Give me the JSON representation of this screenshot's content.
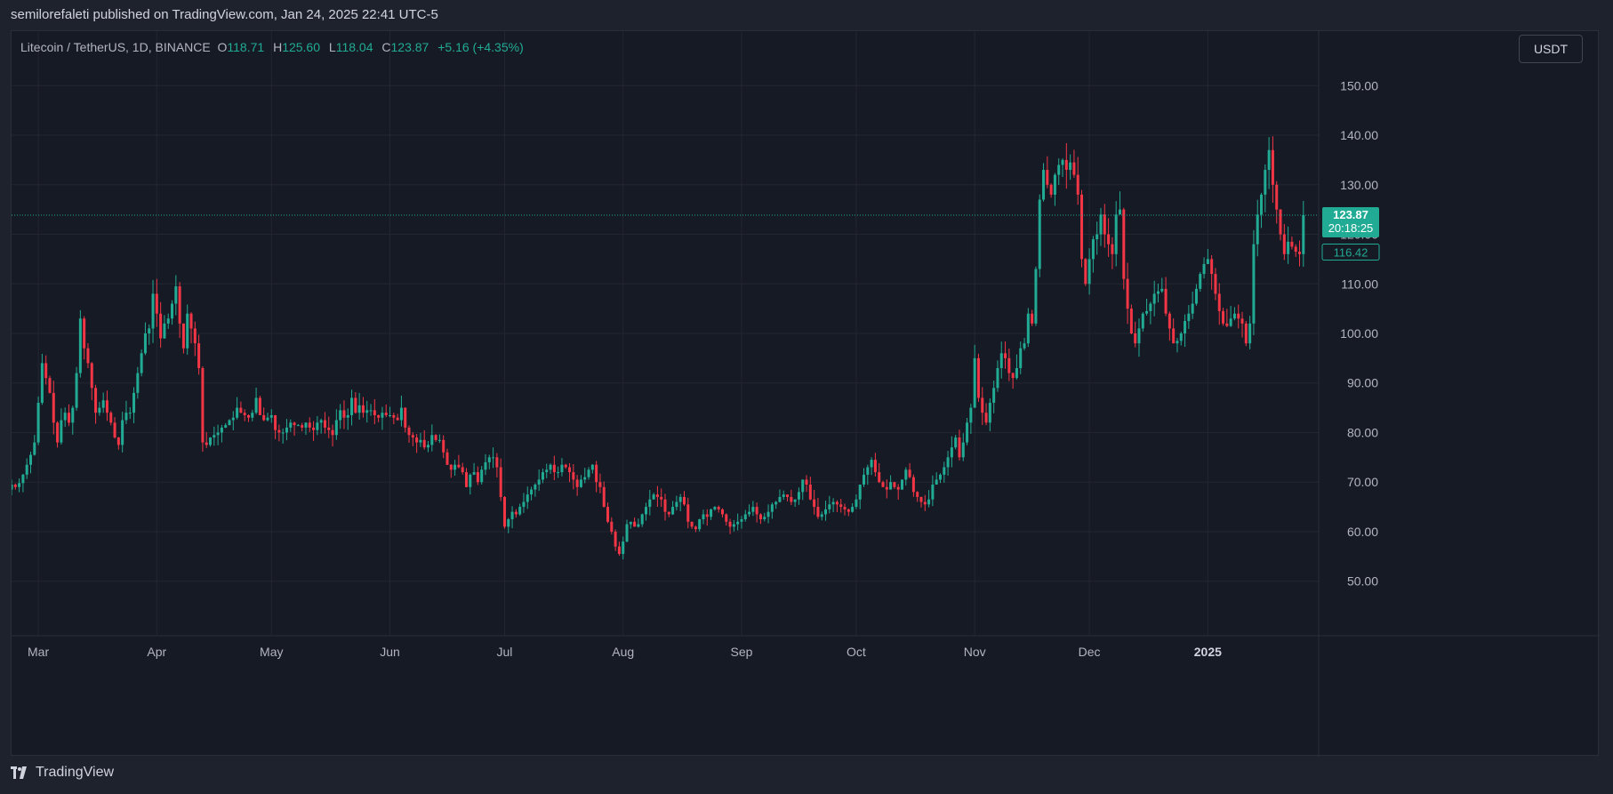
{
  "header": {
    "publisher_line": "semilorefaleti published on TradingView.com, Jan 24, 2025 22:41 UTC-5"
  },
  "legend": {
    "symbol": "Litecoin / TetherUS, 1D, BINANCE",
    "open_label": "O",
    "open": "118.71",
    "high_label": "H",
    "high": "125.60",
    "low_label": "L",
    "low": "118.04",
    "close_label": "C",
    "close": "123.87",
    "change": "+5.16 (+4.35%)"
  },
  "currency_button": "USDT",
  "price_tags": {
    "last_price": "123.87",
    "countdown": "20:18:25",
    "secondary": "116.42"
  },
  "footer": {
    "brand": "TradingView",
    "logo_icon": "tradingview-logo-icon"
  },
  "colors": {
    "up": "#22ab94",
    "down": "#f23645",
    "background": "#161a25",
    "grid": "#232631",
    "text": "#b2b5be"
  },
  "chart_data": {
    "type": "candlestick",
    "y_axis": {
      "ticks": [
        "50.00",
        "60.00",
        "70.00",
        "80.00",
        "90.00",
        "100.00",
        "110.00",
        "120.00",
        "130.00",
        "140.00",
        "150.00"
      ],
      "range": [
        39,
        161
      ]
    },
    "x_axis": {
      "labels": [
        "Mar",
        "Apr",
        "May",
        "Jun",
        "Jul",
        "Aug",
        "Sep",
        "Oct",
        "Nov",
        "Dec",
        "2025"
      ],
      "range": [
        "2024-02-23",
        "2025-01-30"
      ]
    },
    "grid": true,
    "series": [
      {
        "type": "ohlc",
        "date_start": "2024-02-23",
        "interval": "1D",
        "close": [
          69.5,
          69.0,
          69.8,
          71.5,
          73.5,
          75.5,
          78.0,
          86.0,
          94.0,
          91.0,
          88.0,
          82.0,
          78.0,
          82.5,
          84.0,
          82.0,
          85.0,
          92.0,
          103.0,
          97.0,
          94.0,
          89.0,
          84.0,
          85.0,
          86.5,
          84.0,
          82.0,
          79.0,
          77.5,
          82.5,
          84.0,
          84.0,
          88.0,
          92.0,
          96.0,
          100.0,
          101.0,
          108.0,
          104.0,
          99.0,
          102.0,
          103.0,
          106.0,
          109.5,
          102.0,
          97.0,
          104.0,
          101.0,
          98.0,
          93.0,
          78.0,
          77.5,
          79.0,
          79.5,
          80.0,
          81.0,
          81.5,
          82.5,
          83.0,
          85.0,
          84.0,
          83.5,
          83.0,
          84.0,
          87.0,
          83.5,
          82.5,
          83.0,
          83.5,
          80.5,
          80.0,
          80.0,
          81.0,
          82.0,
          81.5,
          81.5,
          81.0,
          82.0,
          81.0,
          80.5,
          82.0,
          82.5,
          81.0,
          80.5,
          79.5,
          82.5,
          84.5,
          83.0,
          83.5,
          87.0,
          84.0,
          85.5,
          84.0,
          84.5,
          84.5,
          83.5,
          83.0,
          84.0,
          83.5,
          83.5,
          83.0,
          82.5,
          85.0,
          81.0,
          79.5,
          79.0,
          78.0,
          78.5,
          77.0,
          77.5,
          79.5,
          78.5,
          78.5,
          76.0,
          73.5,
          72.5,
          73.5,
          73.0,
          72.0,
          69.0,
          71.5,
          72.0,
          70.0,
          72.5,
          74.0,
          75.0,
          75.0,
          73.0,
          67.0,
          61.0,
          62.5,
          64.0,
          63.5,
          65.0,
          66.0,
          67.5,
          68.5,
          69.5,
          70.5,
          72.0,
          72.5,
          73.5,
          72.0,
          72.0,
          73.5,
          73.0,
          72.0,
          70.5,
          69.0,
          70.5,
          71.0,
          72.5,
          73.5,
          70.0,
          69.0,
          65.0,
          62.0,
          60.0,
          57.0,
          55.5,
          58.0,
          61.5,
          62.0,
          61.0,
          61.5,
          63.5,
          65.0,
          66.5,
          67.5,
          67.0,
          66.5,
          64.0,
          63.5,
          65.0,
          66.0,
          67.0,
          65.5,
          62.0,
          61.0,
          60.5,
          62.5,
          63.5,
          63.0,
          64.5,
          65.0,
          64.5,
          63.5,
          62.0,
          61.0,
          61.5,
          62.0,
          62.5,
          63.5,
          64.0,
          65.0,
          63.5,
          62.5,
          63.0,
          64.0,
          65.5,
          66.0,
          67.0,
          67.5,
          67.0,
          66.0,
          66.5,
          68.0,
          70.5,
          69.5,
          66.5,
          65.0,
          63.0,
          63.5,
          64.5,
          65.5,
          66.0,
          65.5,
          65.0,
          64.5,
          64.0,
          65.0,
          66.5,
          69.5,
          71.5,
          73.0,
          74.5,
          72.0,
          70.0,
          69.0,
          68.5,
          70.0,
          69.0,
          68.5,
          70.5,
          72.5,
          71.0,
          68.0,
          67.0,
          66.0,
          65.5,
          66.5,
          69.5,
          70.5,
          71.5,
          73.0,
          75.0,
          77.0,
          79.0,
          75.0,
          78.0,
          82.0,
          85.0,
          95.0,
          87.0,
          84.0,
          82.0,
          86.0,
          89.0,
          93.0,
          96.0,
          95.0,
          92.0,
          91.0,
          93.0,
          97.0,
          98.0,
          104.0,
          102.0,
          113.0,
          127.0,
          133.0,
          130.0,
          128.0,
          132.0,
          134.0,
          135.0,
          133.0,
          134.5,
          132.0,
          128.0,
          115.0,
          110.0,
          115.0,
          119.0,
          120.0,
          124.0,
          120.0,
          118.0,
          116.0,
          124.0,
          125.0,
          111.0,
          105.0,
          100.0,
          98.0,
          101.0,
          104.0,
          104.5,
          106.0,
          108.0,
          108.5,
          109.0,
          104.0,
          101.0,
          98.0,
          98.5,
          100.0,
          102.5,
          104.0,
          106.0,
          109.0,
          112.0,
          114.0,
          115.0,
          112.0,
          108.0,
          104.5,
          102.0,
          101.5,
          103.0,
          104.0,
          103.0,
          102.0,
          98.0,
          102.0,
          118.0,
          124.0,
          128.0,
          133.0,
          137.0,
          130.0,
          125.0,
          120.0,
          116.0,
          118.5,
          117.5,
          116.5,
          116.0,
          123.87
        ],
        "note": "OHLC derived from closes; candle color green when close >= open"
      }
    ]
  }
}
